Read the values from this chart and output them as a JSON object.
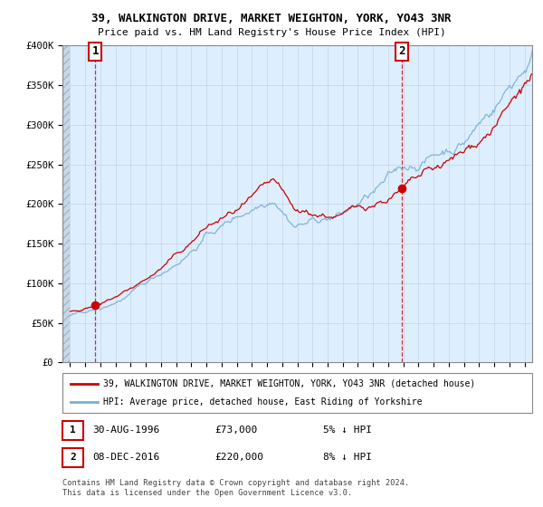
{
  "title_line1": "39, WALKINGTON DRIVE, MARKET WEIGHTON, YORK, YO43 3NR",
  "title_line2": "Price paid vs. HM Land Registry's House Price Index (HPI)",
  "ylim": [
    0,
    400000
  ],
  "yticks": [
    0,
    50000,
    100000,
    150000,
    200000,
    250000,
    300000,
    350000,
    400000
  ],
  "ytick_labels": [
    "£0",
    "£50K",
    "£100K",
    "£150K",
    "£200K",
    "£250K",
    "£300K",
    "£350K",
    "£400K"
  ],
  "xmin": 1994.5,
  "xmax": 2025.5,
  "sale1_date": 1996.67,
  "sale1_price": 73000,
  "sale1_label": "1",
  "sale2_date": 2016.92,
  "sale2_price": 220000,
  "sale2_label": "2",
  "hpi_color": "#7aadd4",
  "price_color": "#cc0000",
  "annotation_box_color": "#cc0000",
  "grid_color": "#c8d8e8",
  "bg_color": "#ddeeff",
  "copyright_text": "Contains HM Land Registry data © Crown copyright and database right 2024.\nThis data is licensed under the Open Government Licence v3.0.",
  "legend_line1": "39, WALKINGTON DRIVE, MARKET WEIGHTON, YORK, YO43 3NR (detached house)",
  "legend_line2": "HPI: Average price, detached house, East Riding of Yorkshire",
  "table_row1": [
    "1",
    "30-AUG-1996",
    "£73,000",
    "5% ↓ HPI"
  ],
  "table_row2": [
    "2",
    "08-DEC-2016",
    "£220,000",
    "8% ↓ HPI"
  ]
}
